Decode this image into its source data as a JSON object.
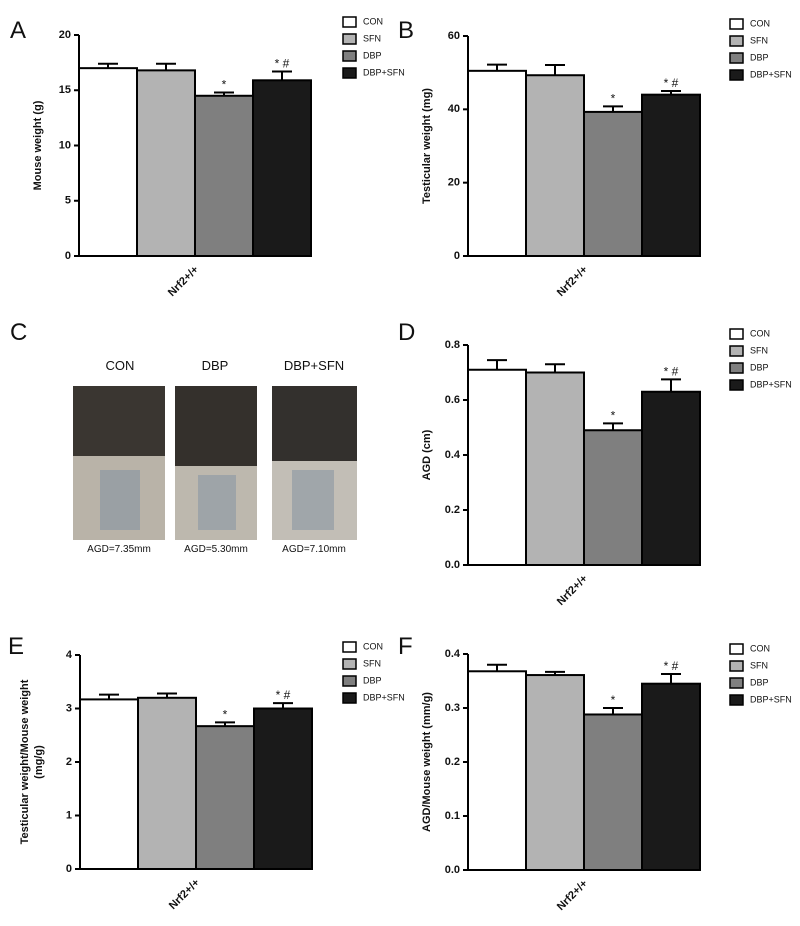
{
  "chart_data": [
    {
      "type": "bar",
      "panel": "A",
      "ylabel": [
        "Mouse weight (g)"
      ],
      "categories": [
        "Nrf2+/+"
      ],
      "ylim": [
        0,
        20
      ],
      "yticks": [
        0,
        5,
        10,
        15,
        20
      ],
      "series": [
        {
          "name": "CON",
          "color": "#ffffff",
          "values": [
            17.0
          ],
          "errors": [
            0.4
          ]
        },
        {
          "name": "SFN",
          "color": "#b3b3b3",
          "values": [
            16.8
          ],
          "errors": [
            0.6
          ]
        },
        {
          "name": "DBP",
          "color": "#7f7f7f",
          "values": [
            14.5
          ],
          "errors": [
            0.3
          ],
          "annotation": "*"
        },
        {
          "name": "DBP+SFN",
          "color": "#1a1a1a",
          "values": [
            15.9
          ],
          "errors": [
            0.8
          ],
          "annotation": "* #"
        }
      ]
    },
    {
      "type": "bar",
      "panel": "B",
      "ylabel": [
        "Testicular weight (mg)"
      ],
      "categories": [
        "Nrf2+/+"
      ],
      "ylim": [
        0,
        60
      ],
      "yticks": [
        0,
        20,
        40,
        60
      ],
      "series": [
        {
          "name": "CON",
          "color": "#ffffff",
          "values": [
            50.5
          ],
          "errors": [
            1.7
          ]
        },
        {
          "name": "SFN",
          "color": "#b3b3b3",
          "values": [
            49.3
          ],
          "errors": [
            2.8
          ]
        },
        {
          "name": "DBP",
          "color": "#7f7f7f",
          "values": [
            39.3
          ],
          "errors": [
            1.5
          ],
          "annotation": "*"
        },
        {
          "name": "DBP+SFN",
          "color": "#1a1a1a",
          "values": [
            44.0
          ],
          "errors": [
            1.0
          ],
          "annotation": "* #"
        }
      ]
    },
    {
      "type": "bar",
      "panel": "D",
      "ylabel": [
        "AGD (cm)"
      ],
      "categories": [
        "Nrf2+/+"
      ],
      "ylim": [
        0,
        0.8
      ],
      "yticks": [
        {
          "value": 0,
          "label": "0.0"
        },
        0.2,
        0.4,
        0.6,
        0.8
      ],
      "series": [
        {
          "name": "CON",
          "color": "#ffffff",
          "values": [
            0.71
          ],
          "errors": [
            0.035
          ]
        },
        {
          "name": "SFN",
          "color": "#b3b3b3",
          "values": [
            0.7
          ],
          "errors": [
            0.03
          ]
        },
        {
          "name": "DBP",
          "color": "#7f7f7f",
          "values": [
            0.49
          ],
          "errors": [
            0.025
          ],
          "annotation": "*"
        },
        {
          "name": "DBP+SFN",
          "color": "#1a1a1a",
          "values": [
            0.63
          ],
          "errors": [
            0.045
          ],
          "annotation": "* #"
        }
      ]
    },
    {
      "type": "bar",
      "panel": "E",
      "ylabel": [
        "Testicular weight/Mouse weight",
        "(mg/g)"
      ],
      "categories": [
        "Nrf2+/+"
      ],
      "ylim": [
        0,
        4
      ],
      "yticks": [
        0,
        1,
        2,
        3,
        4
      ],
      "series": [
        {
          "name": "CON",
          "color": "#ffffff",
          "values": [
            3.17
          ],
          "errors": [
            0.09
          ]
        },
        {
          "name": "SFN",
          "color": "#b3b3b3",
          "values": [
            3.2
          ],
          "errors": [
            0.08
          ]
        },
        {
          "name": "DBP",
          "color": "#7f7f7f",
          "values": [
            2.67
          ],
          "errors": [
            0.07
          ],
          "annotation": "*"
        },
        {
          "name": "DBP+SFN",
          "color": "#1a1a1a",
          "values": [
            3.0
          ],
          "errors": [
            0.1
          ],
          "annotation": "* #"
        }
      ]
    },
    {
      "type": "bar",
      "panel": "F",
      "ylabel": [
        "AGD/Mouse weight (mm/g)"
      ],
      "categories": [
        "Nrf2+/+"
      ],
      "ylim": [
        0,
        0.4
      ],
      "yticks": [
        {
          "value": 0,
          "label": "0.0"
        },
        0.1,
        0.2,
        0.3,
        0.4
      ],
      "series": [
        {
          "name": "CON",
          "color": "#ffffff",
          "values": [
            0.368
          ],
          "errors": [
            0.012
          ]
        },
        {
          "name": "SFN",
          "color": "#b3b3b3",
          "values": [
            0.361
          ],
          "errors": [
            0.006
          ]
        },
        {
          "name": "DBP",
          "color": "#7f7f7f",
          "values": [
            0.288
          ],
          "errors": [
            0.012
          ],
          "annotation": "*"
        },
        {
          "name": "DBP+SFN",
          "color": "#1a1a1a",
          "values": [
            0.345
          ],
          "errors": [
            0.018
          ],
          "annotation": "* #"
        }
      ]
    }
  ],
  "photo_panel": {
    "panel": "C",
    "labels": [
      "CON",
      "DBP",
      "DBP+SFN"
    ],
    "captions": [
      "AGD=7.35mm",
      "AGD=5.30mm",
      "AGD=7.10mm"
    ]
  }
}
